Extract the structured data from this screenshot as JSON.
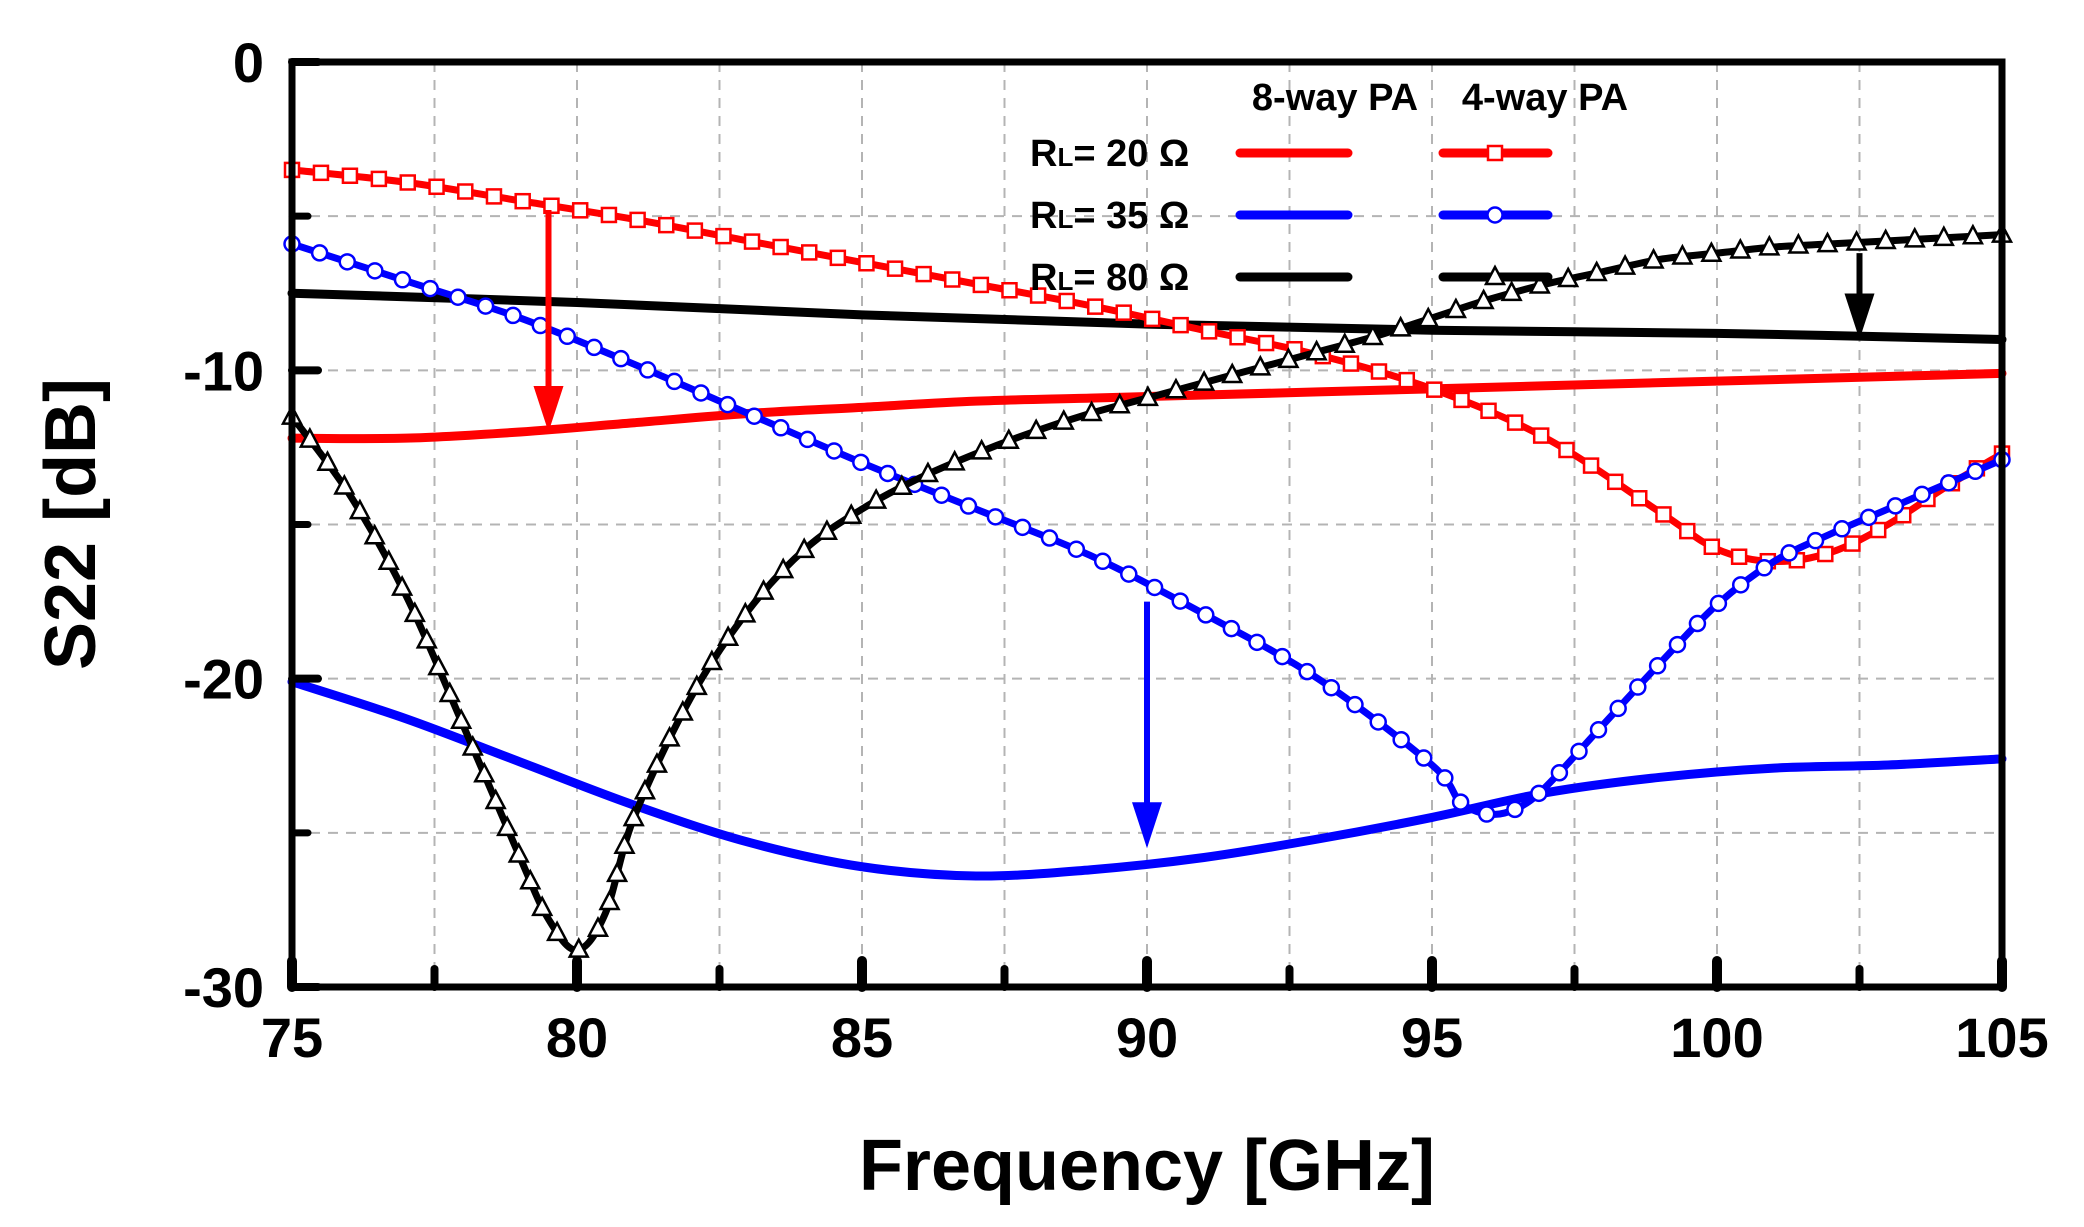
{
  "chart_data": {
    "type": "line",
    "title": "",
    "xlabel": "Frequency [GHz]",
    "ylabel": "S22 [dB]",
    "xlim": [
      75,
      105
    ],
    "ylim": [
      -30,
      0
    ],
    "xticks": [
      75,
      80,
      85,
      90,
      95,
      100,
      105
    ],
    "xtick_labels": [
      "75",
      "80",
      "85",
      "90",
      "95",
      "100",
      "105"
    ],
    "yticks": [
      0,
      -10,
      -20,
      -30
    ],
    "ytick_labels": [
      "0",
      "-10",
      "-20",
      "-30"
    ],
    "grid": true,
    "legend": {
      "placement": "top-right",
      "col_headers": [
        "8-way PA",
        "4-way PA"
      ],
      "rows": [
        {
          "label": "R",
          "sub": "L",
          "value": "= 20 Ω",
          "color": "#ff0000"
        },
        {
          "label": "R",
          "sub": "L",
          "value": "= 35 Ω",
          "color": "#0000ff"
        },
        {
          "label": "R",
          "sub": "L",
          "value": "= 80 Ω",
          "color": "#000000"
        }
      ]
    },
    "series": [
      {
        "name": "8-way PA, RL = 20 Ω",
        "color": "#ff0000",
        "marker": "none",
        "x": [
          75,
          77,
          79,
          81,
          83,
          85,
          87,
          89,
          91,
          93,
          95,
          97,
          99,
          101,
          103,
          105
        ],
        "y": [
          -12.2,
          -12.2,
          -12.0,
          -11.7,
          -11.4,
          -11.2,
          -11.0,
          -10.9,
          -10.8,
          -10.7,
          -10.6,
          -10.5,
          -10.4,
          -10.3,
          -10.2,
          -10.1
        ]
      },
      {
        "name": "8-way PA, RL = 35 Ω",
        "color": "#0000ff",
        "marker": "none",
        "x": [
          75,
          77,
          79,
          81,
          83,
          85,
          87,
          89,
          91,
          93,
          95,
          97,
          99,
          101,
          103,
          105
        ],
        "y": [
          -20.1,
          -21.3,
          -22.7,
          -24.1,
          -25.3,
          -26.1,
          -26.4,
          -26.2,
          -25.8,
          -25.2,
          -24.5,
          -23.7,
          -23.2,
          -22.9,
          -22.8,
          -22.6
        ]
      },
      {
        "name": "8-way PA, RL = 80 Ω",
        "color": "#000000",
        "marker": "none",
        "x": [
          75,
          80,
          85,
          90,
          95,
          100,
          105
        ],
        "y": [
          -7.5,
          -7.8,
          -8.2,
          -8.5,
          -8.7,
          -8.8,
          -9.0
        ]
      },
      {
        "name": "4-way PA, RL = 20 Ω",
        "color": "#ff0000",
        "marker": "square",
        "x": [
          75,
          77,
          79,
          81,
          83,
          85,
          87,
          89,
          91,
          93,
          95,
          97,
          99,
          100,
          101,
          102,
          103,
          104,
          105
        ],
        "y": [
          -3.5,
          -3.9,
          -4.5,
          -5.1,
          -5.8,
          -6.5,
          -7.2,
          -7.9,
          -8.7,
          -9.5,
          -10.6,
          -12.2,
          -14.6,
          -15.8,
          -16.2,
          -15.9,
          -15.0,
          -13.8,
          -12.7
        ]
      },
      {
        "name": "4-way PA, RL = 35 Ω",
        "color": "#0000ff",
        "marker": "circle",
        "x": [
          75,
          77,
          79,
          81,
          83,
          85,
          87,
          89,
          91,
          93,
          95,
          95.5,
          96,
          96.5,
          97,
          98,
          99,
          100,
          101,
          102,
          103,
          104,
          105
        ],
        "y": [
          -5.9,
          -7.1,
          -8.3,
          -9.8,
          -11.4,
          -13.0,
          -14.5,
          -16.0,
          -17.9,
          -20.0,
          -22.8,
          -24.0,
          -24.4,
          -24.2,
          -23.5,
          -21.5,
          -19.5,
          -17.6,
          -16.2,
          -15.3,
          -14.5,
          -13.7,
          -12.9
        ]
      },
      {
        "name": "4-way PA, RL = 80 Ω",
        "color": "#000000",
        "marker": "triangle",
        "x": [
          75,
          76,
          77,
          78,
          79,
          79.5,
          80,
          80.5,
          81,
          82,
          83,
          84,
          85,
          86,
          87,
          88,
          89,
          90,
          91,
          92,
          93,
          94,
          95,
          96,
          97,
          98,
          99,
          100,
          101,
          102,
          103,
          104,
          105
        ],
        "y": [
          -11.5,
          -14.0,
          -17.3,
          -21.5,
          -25.8,
          -27.8,
          -28.8,
          -27.6,
          -24.5,
          -20.6,
          -17.8,
          -15.8,
          -14.5,
          -13.5,
          -12.7,
          -12.0,
          -11.4,
          -10.9,
          -10.4,
          -9.9,
          -9.4,
          -8.9,
          -8.3,
          -7.7,
          -7.2,
          -6.8,
          -6.4,
          -6.2,
          -6.0,
          -5.9,
          -5.8,
          -5.7,
          -5.6
        ]
      }
    ],
    "annotations": [
      {
        "type": "arrow",
        "color": "#ff0000",
        "x": 79.5,
        "y_from": -4.8,
        "y_to": -12.0
      },
      {
        "type": "arrow",
        "color": "#0000ff",
        "x": 90,
        "y_from": -17.5,
        "y_to": -25.5
      },
      {
        "type": "arrow",
        "color": "#000000",
        "x": 102.5,
        "y_from": -6.2,
        "y_to": -9.0
      }
    ]
  }
}
